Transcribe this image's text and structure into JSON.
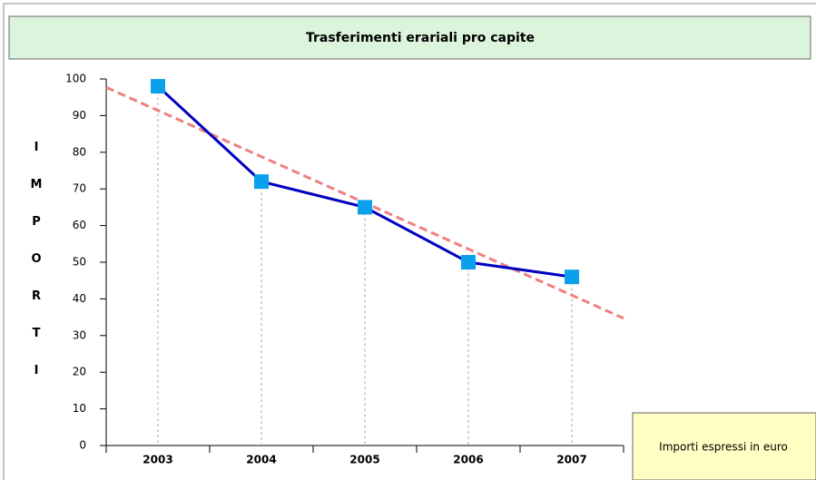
{
  "chart_data": {
    "type": "line",
    "title": "Trasferimenti erariali pro capite",
    "y_label": "IMPORTI",
    "note": "Importi espressi in euro",
    "categories": [
      "2003",
      "2004",
      "2005",
      "2006",
      "2007"
    ],
    "series": [
      {
        "color": "#0000c0",
        "marker_color": "#0aa0ec",
        "values": [
          98,
          72,
          65,
          50,
          46
        ]
      }
    ],
    "trend": {
      "color": "#f08080",
      "values": [
        91.4,
        78.8,
        66.2,
        53.6,
        41
      ]
    },
    "ylim": [
      0,
      100
    ],
    "yticks": [
      0,
      10,
      20,
      30,
      40,
      50,
      60,
      70,
      80,
      90,
      100
    ]
  }
}
